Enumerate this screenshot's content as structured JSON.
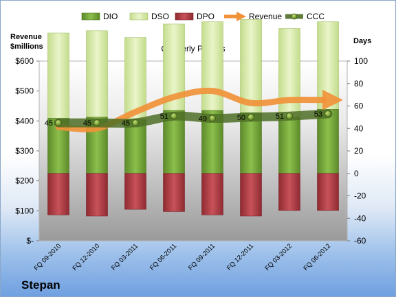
{
  "company": "Stepan",
  "chart_data": {
    "type": "bar",
    "title": "Quarterly Periods",
    "left_axis_title": [
      "Revenue",
      "$millions"
    ],
    "right_axis_title": "Days",
    "categories": [
      "FQ 09-2010",
      "FQ 12-2010",
      "FQ 03-2011",
      "FQ 06-2011",
      "FQ 09-2011",
      "FQ 12-2011",
      "FQ 03-2012",
      "FQ 06-2012"
    ],
    "left_ticks": [
      "$-",
      "$100",
      "$200",
      "$300",
      "$400",
      "$500",
      "$600"
    ],
    "left_ylim": [
      0,
      600
    ],
    "right_ticks": [
      "-60",
      "-40",
      "-20",
      "0",
      "20",
      "40",
      "60",
      "80",
      "100"
    ],
    "right_ylim": [
      -60,
      100
    ],
    "legend": [
      "DIO",
      "DSO",
      "DPO",
      "Revenue",
      "CCC"
    ],
    "legend_position": "top",
    "series": [
      {
        "name": "DIO",
        "values": [
          49,
          50,
          48,
          56,
          56,
          54,
          50,
          57
        ],
        "color": "#7aa83e"
      },
      {
        "name": "DSO",
        "values": [
          76,
          77,
          73,
          77,
          79,
          83,
          79,
          78
        ],
        "color": "#d8eab0"
      },
      {
        "name": "DPO",
        "values": [
          -37,
          -38,
          -32,
          -34,
          -37,
          -38,
          -33,
          -33
        ],
        "color": "#b23c44"
      },
      {
        "name": "Revenue",
        "values": [
          380,
          375,
          430,
          480,
          500,
          460,
          470,
          470
        ],
        "color": "#f0923a"
      },
      {
        "name": "CCC",
        "values": [
          45,
          45,
          45,
          51,
          49,
          50,
          51,
          53
        ],
        "labels": [
          "45",
          "45",
          "45",
          "51",
          "49",
          "50",
          "51",
          "53"
        ],
        "color": "#4f6e27"
      }
    ]
  }
}
